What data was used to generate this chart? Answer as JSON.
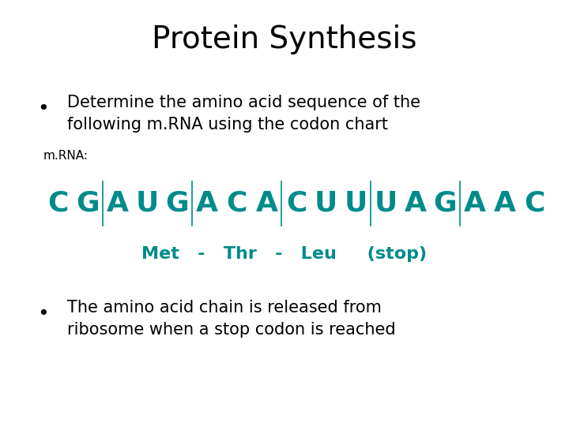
{
  "title": "Protein Synthesis",
  "title_fontsize": 28,
  "title_color": "#000000",
  "bg_color": "#ffffff",
  "teal_color": "#008B8B",
  "bullet1_line1": "Determine the amino acid sequence of the",
  "bullet1_line2": "following m·RNA using the codon chart",
  "bullet1_line1_display": "Determine the amino acid sequence of the",
  "bullet1_line2_display": "following m.RNA using the codon chart",
  "bullet_fontsize": 15,
  "mrna_label": "m.RNA:",
  "mrna_label_fontsize": 11,
  "sequence_chars": [
    "C",
    "G",
    "A",
    "U",
    "G",
    "A",
    "C",
    "A",
    "C",
    "U",
    "U",
    "U",
    "A",
    "G",
    "A",
    "A",
    "C"
  ],
  "dividers_after": [
    1,
    4,
    7,
    10,
    13
  ],
  "sequence_fontsize": 26,
  "amino_line": "Met   -   Thr   -   Leu     (stop)",
  "amino_fontsize": 16,
  "bullet2_line1": "The amino acid chain is released from",
  "bullet2_line2": "ribosome when a stop codon is reached",
  "bullet2_fontsize": 15
}
